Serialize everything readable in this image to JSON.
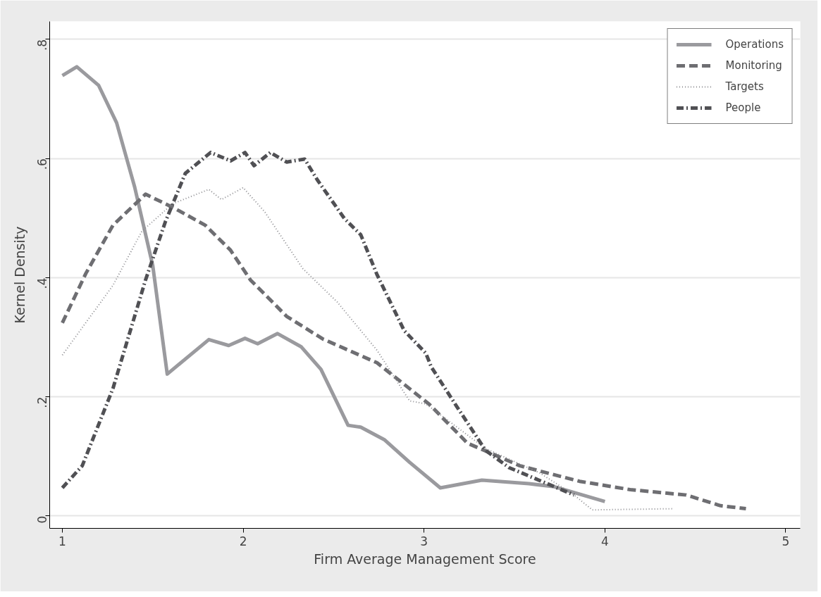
{
  "chart_data": {
    "type": "line",
    "xlabel": "Firm Average Management Score",
    "ylabel": "Kernel Density",
    "xlim": [
      0.93,
      5.08
    ],
    "ylim": [
      -0.021,
      0.83
    ],
    "xticks": [
      1,
      2,
      3,
      4,
      5
    ],
    "yticks": [
      {
        "value": 0,
        "label": "0"
      },
      {
        "value": 0.2,
        "label": ".2"
      },
      {
        "value": 0.4,
        "label": ".4"
      },
      {
        "value": 0.6,
        "label": ".6"
      },
      {
        "value": 0.8,
        "label": ".8"
      }
    ],
    "grid": "y",
    "legend": "top right",
    "series": [
      {
        "name": "Operations",
        "color": "#9a9a9e",
        "line_style": "solid",
        "x": [
          1.0,
          1.08,
          1.2,
          1.3,
          1.4,
          1.5,
          1.58,
          1.81,
          1.92,
          2.01,
          2.08,
          2.19,
          2.32,
          2.43,
          2.58,
          2.65,
          2.78,
          2.92,
          3.09,
          3.32,
          3.58,
          3.72,
          4.0
        ],
        "values": [
          0.739,
          0.754,
          0.723,
          0.66,
          0.552,
          0.42,
          0.238,
          0.296,
          0.286,
          0.298,
          0.289,
          0.306,
          0.284,
          0.246,
          0.152,
          0.149,
          0.128,
          0.09,
          0.047,
          0.06,
          0.054,
          0.049,
          0.024
        ]
      },
      {
        "name": "Monitoring",
        "color": "#6e6e72",
        "line_style": "dashed",
        "x": [
          1.0,
          1.13,
          1.28,
          1.46,
          1.61,
          1.79,
          1.93,
          2.04,
          2.24,
          2.44,
          2.74,
          3.03,
          3.24,
          3.53,
          3.86,
          4.14,
          4.45,
          4.64,
          4.78
        ],
        "values": [
          0.324,
          0.407,
          0.488,
          0.54,
          0.518,
          0.488,
          0.446,
          0.396,
          0.335,
          0.297,
          0.257,
          0.187,
          0.122,
          0.084,
          0.058,
          0.044,
          0.035,
          0.017,
          0.012
        ]
      },
      {
        "name": "Targets",
        "color": "#8a8a8e",
        "line_style": "dotted",
        "x": [
          1.0,
          1.28,
          1.44,
          1.61,
          1.81,
          1.88,
          2.0,
          2.12,
          2.33,
          2.52,
          2.74,
          2.92,
          3.01,
          3.34,
          3.64,
          3.83,
          3.93,
          4.38
        ],
        "values": [
          0.27,
          0.387,
          0.478,
          0.524,
          0.548,
          0.531,
          0.551,
          0.51,
          0.415,
          0.359,
          0.278,
          0.193,
          0.188,
          0.113,
          0.072,
          0.035,
          0.01,
          0.012
        ]
      },
      {
        "name": "People",
        "color": "#505054",
        "line_style": "dashdot",
        "x": [
          1.0,
          1.11,
          1.28,
          1.46,
          1.57,
          1.68,
          1.82,
          1.93,
          2.01,
          2.06,
          2.15,
          2.24,
          2.34,
          2.41,
          2.56,
          2.65,
          2.74,
          2.89,
          3.01,
          3.04,
          3.18,
          3.34,
          3.47,
          3.83
        ],
        "values": [
          0.047,
          0.084,
          0.214,
          0.396,
          0.494,
          0.575,
          0.61,
          0.596,
          0.61,
          0.588,
          0.61,
          0.594,
          0.599,
          0.564,
          0.499,
          0.472,
          0.405,
          0.311,
          0.273,
          0.25,
          0.184,
          0.11,
          0.081,
          0.035
        ]
      }
    ]
  }
}
